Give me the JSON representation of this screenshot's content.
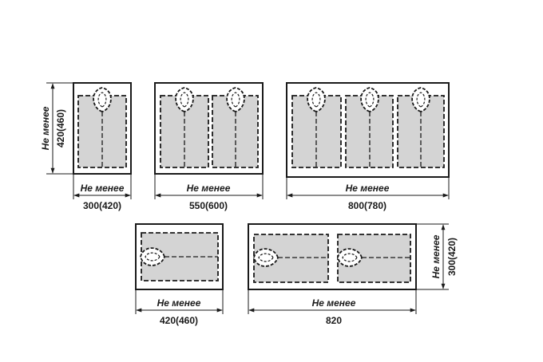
{
  "colors": {
    "ink": "#1a1a1a",
    "fill": "#d4d4d4",
    "background": "#ffffff"
  },
  "labels": {
    "min": "Не менее"
  },
  "dimensions": {
    "d1_width": "300(420)",
    "d1_height": "420(460)",
    "d2_width": "550(600)",
    "d3_width": "800(780)",
    "d4_width": "420(460)",
    "d5_width": "820",
    "d5_height": "300(420)"
  }
}
